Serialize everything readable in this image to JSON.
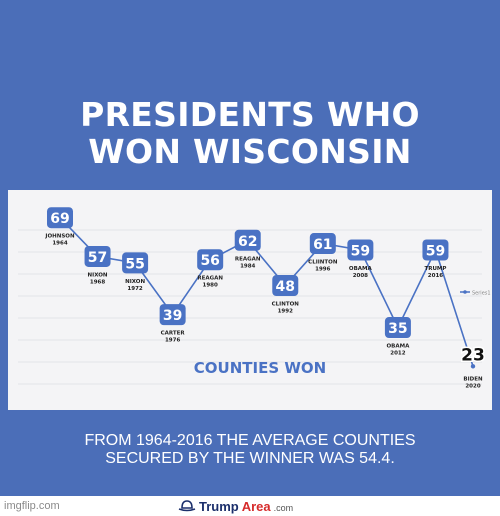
{
  "title_lines": [
    "PRESIDENTS WHO",
    "WON WISCONSIN"
  ],
  "footer_lines": [
    "FROM 1964-2016 THE AVERAGE COUNTIES",
    "SECURED BY THE WINNER WAS 54.4."
  ],
  "watermark": "imgflip.com",
  "brand": {
    "part1": "Trump",
    "part2": "Area",
    "suffix": ".com"
  },
  "colors": {
    "frame": "#4b6eb8",
    "line": "#4a72c4",
    "badge": "#4a72c4"
  },
  "chart_data": {
    "type": "line",
    "title": "COUNTIES WON",
    "legend_label": "Series1",
    "legend_position": "right",
    "grid": true,
    "ylim": [
      20,
      72
    ],
    "points": [
      {
        "name": "JOHNSON",
        "year": "1964",
        "value": 69
      },
      {
        "name": "NIXON",
        "year": "1968",
        "value": 57
      },
      {
        "name": "NIXON",
        "year": "1972",
        "value": 55
      },
      {
        "name": "CARTER",
        "year": "1976",
        "value": 39
      },
      {
        "name": "REAGAN",
        "year": "1980",
        "value": 56
      },
      {
        "name": "REAGAN",
        "year": "1984",
        "value": 62
      },
      {
        "name": "CLINTON",
        "year": "1992",
        "value": 48
      },
      {
        "name": "CLIINTON",
        "year": "1996",
        "value": 61
      },
      {
        "name": "OBAMA",
        "year": "2008",
        "value": 59
      },
      {
        "name": "OBAMA",
        "year": "2012",
        "value": 35
      },
      {
        "name": "TRUMP",
        "year": "2016",
        "value": 59
      },
      {
        "name": "BIDEN",
        "year": "2020",
        "value": 23
      }
    ]
  }
}
